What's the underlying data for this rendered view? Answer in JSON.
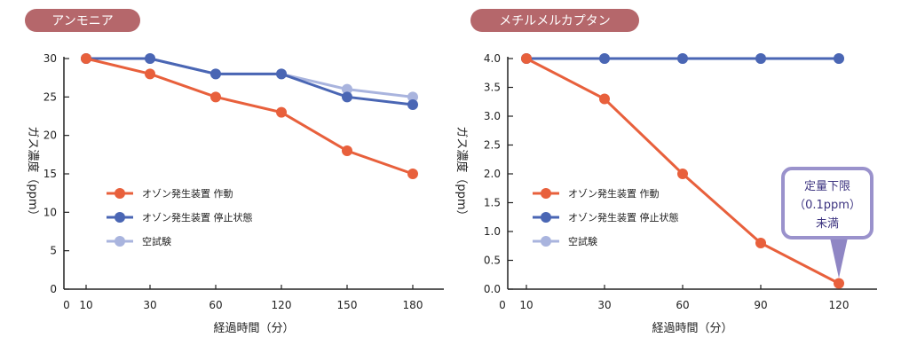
{
  "chart_data": [
    {
      "type": "line",
      "title": "アンモニア",
      "ylabel": "ガス濃度（ppm）",
      "xlabel": "経過時間（分）",
      "x_ticks": [
        "0",
        "10",
        "30",
        "60",
        "120",
        "150",
        "180"
      ],
      "y_ticks": [
        "0",
        "5",
        "10",
        "15",
        "20",
        "25",
        "30"
      ],
      "ylim": [
        0,
        30
      ],
      "categories": [
        "10",
        "30",
        "60",
        "120",
        "150",
        "180"
      ],
      "series": [
        {
          "name": "オゾン発生装置 作動",
          "color": "#e8603c",
          "values": [
            30,
            28,
            25,
            23,
            18,
            15
          ]
        },
        {
          "name": "オゾン発生装置 停止状態",
          "color": "#4a66b4",
          "values": [
            30,
            30,
            28,
            28,
            25,
            24
          ]
        },
        {
          "name": "空試験",
          "color": "#a9b4de",
          "values": [
            30,
            30,
            28,
            28,
            26,
            25
          ]
        }
      ],
      "legend_position": "center-left",
      "grid": false
    },
    {
      "type": "line",
      "title": "メチルメルカプタン",
      "ylabel": "ガス濃度（ppm）",
      "xlabel": "経過時間（分）",
      "x_ticks": [
        "0",
        "10",
        "30",
        "60",
        "90",
        "120"
      ],
      "y_ticks": [
        "0.0",
        "0.5",
        "1.0",
        "1.5",
        "2.0",
        "2.5",
        "3.0",
        "3.5",
        "4.0"
      ],
      "ylim": [
        0,
        4
      ],
      "categories": [
        "10",
        "30",
        "60",
        "90",
        "120"
      ],
      "series": [
        {
          "name": "オゾン発生装置 作動",
          "color": "#e8603c",
          "values": [
            4.0,
            3.3,
            2.0,
            0.8,
            0.1
          ]
        },
        {
          "name": "オゾン発生装置 停止状態",
          "color": "#4a66b4",
          "values": [
            4.0,
            4.0,
            4.0,
            4.0,
            4.0
          ]
        },
        {
          "name": "空試験",
          "color": "#a9b4de",
          "values": [
            4.0,
            4.0,
            4.0,
            4.0,
            4.0
          ]
        }
      ],
      "legend_position": "center-left",
      "grid": false,
      "annotation": {
        "lines": [
          "定量下限",
          "（0.1ppm）",
          "未満"
        ],
        "at_category": "120"
      }
    }
  ]
}
